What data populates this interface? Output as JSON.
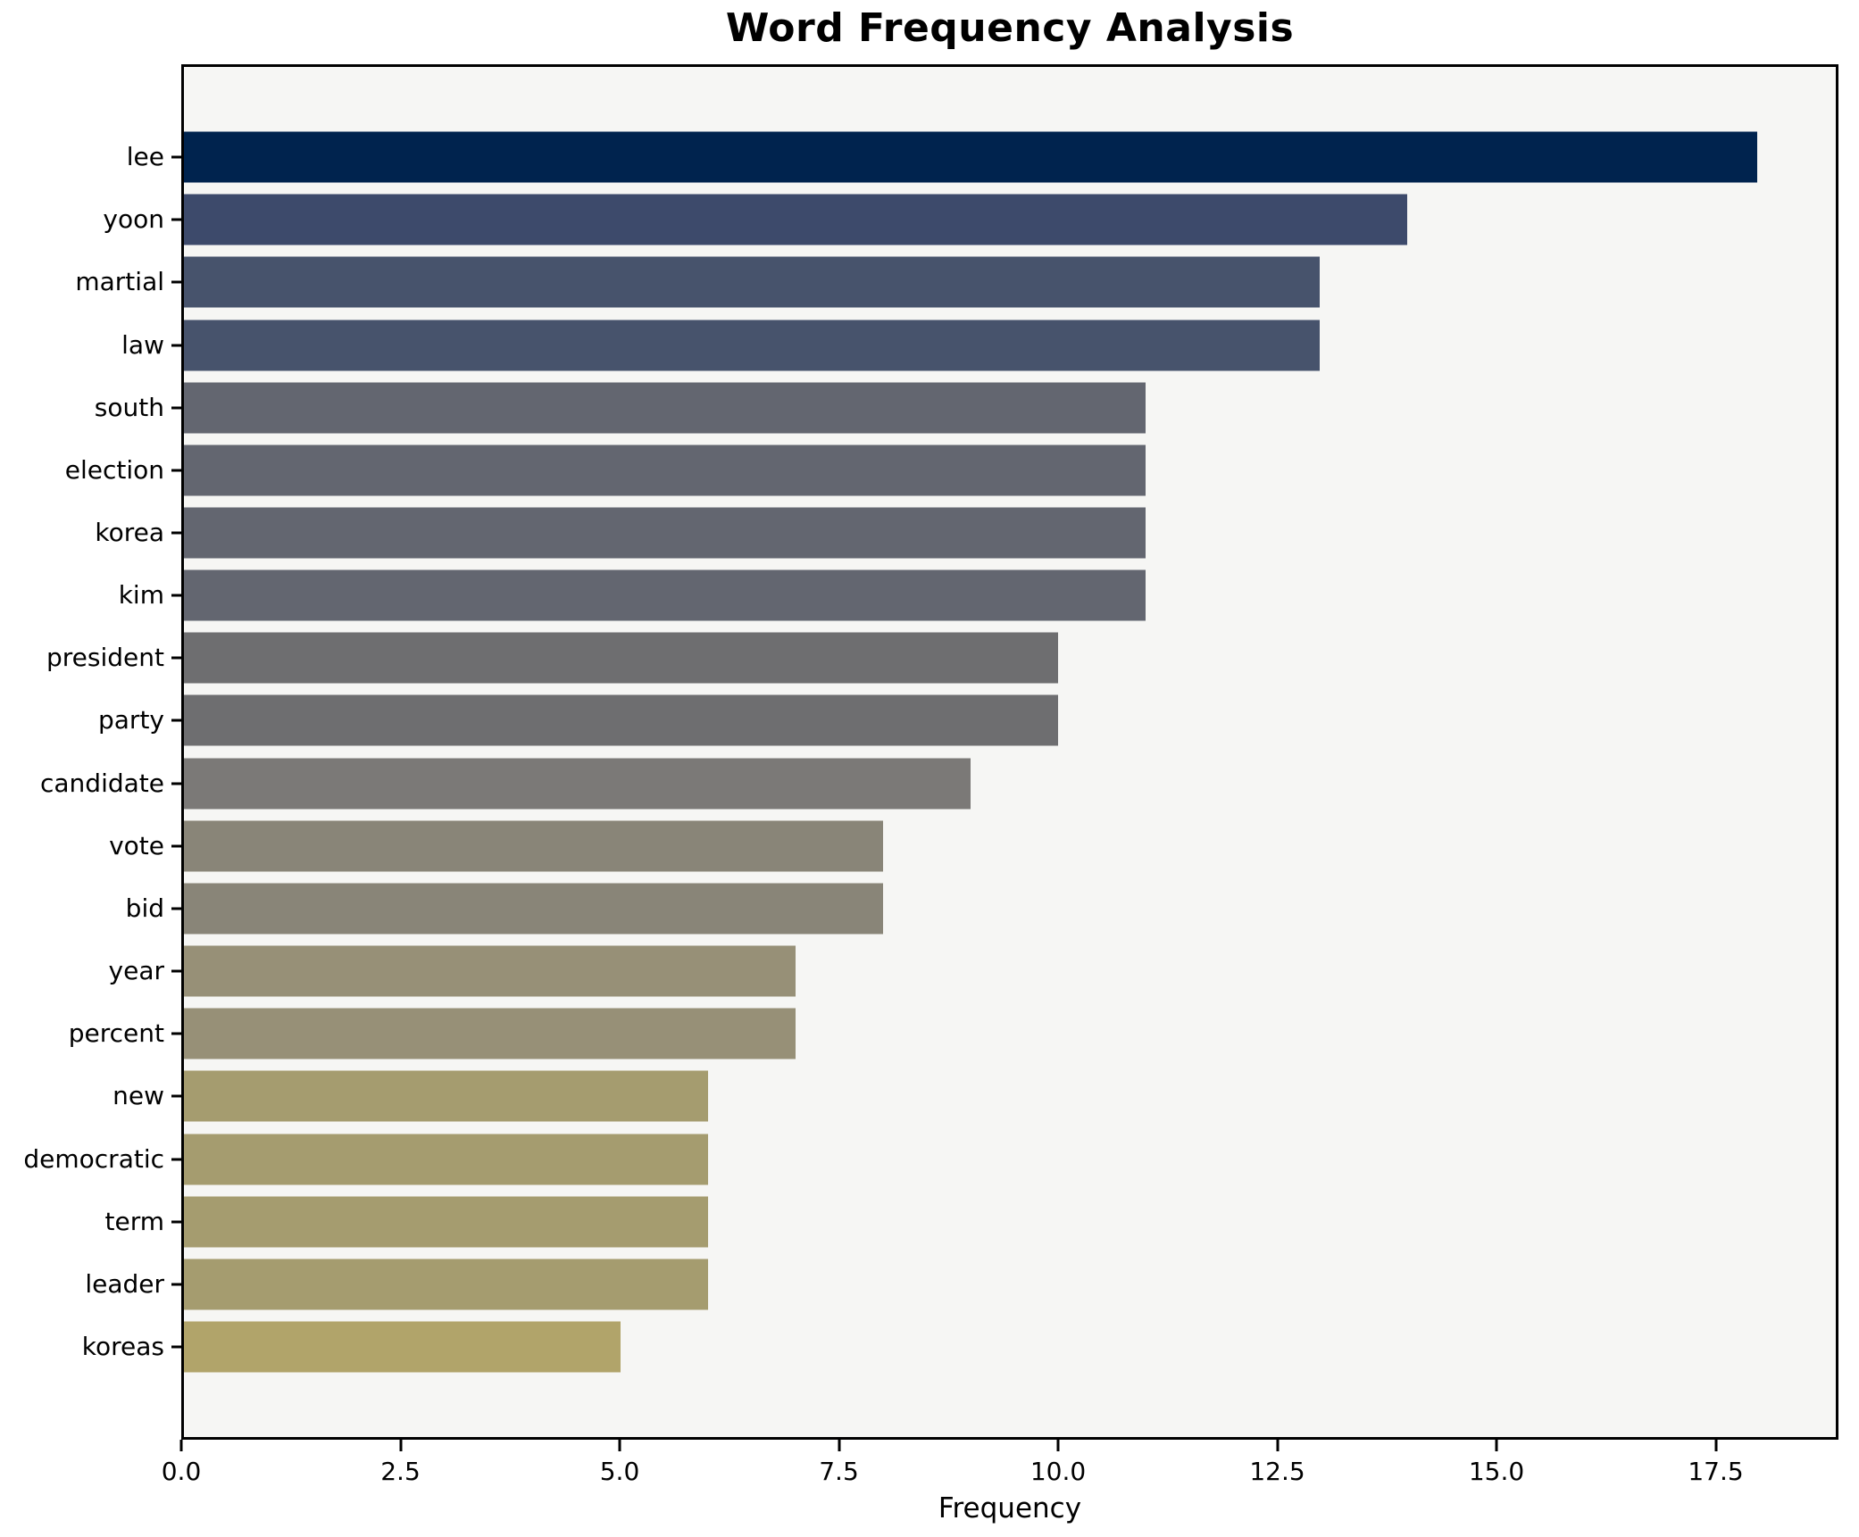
{
  "chart_data": {
    "type": "bar",
    "orientation": "horizontal",
    "title": "Word Frequency Analysis",
    "xlabel": "Frequency",
    "ylabel": "",
    "categories": [
      "lee",
      "yoon",
      "martial",
      "law",
      "south",
      "election",
      "korea",
      "kim",
      "president",
      "party",
      "candidate",
      "vote",
      "bid",
      "year",
      "percent",
      "new",
      "democratic",
      "term",
      "leader",
      "koreas"
    ],
    "values": [
      18,
      14,
      13,
      13,
      11,
      11,
      11,
      11,
      10,
      10,
      9,
      8,
      8,
      7,
      7,
      6,
      6,
      6,
      6,
      5
    ],
    "bar_colors": [
      "#00234e",
      "#3d4a6b",
      "#47536c",
      "#47536c",
      "#636670",
      "#636670",
      "#636670",
      "#636670",
      "#6e6e70",
      "#6e6e70",
      "#7b7977",
      "#898578",
      "#898578",
      "#979077",
      "#979077",
      "#a59c6f",
      "#a59c6f",
      "#a59c6f",
      "#a59c6f",
      "#b1a46a"
    ],
    "xlim": [
      0,
      18.9
    ],
    "x_ticks": [
      0,
      2.5,
      5,
      7.5,
      10,
      12.5,
      15,
      17.5
    ],
    "x_tick_labels": [
      "0.0",
      "2.5",
      "5.0",
      "7.5",
      "10.0",
      "12.5",
      "15.0",
      "17.5"
    ],
    "grid": false,
    "legend": "none",
    "colors": {
      "figure_bg": "#ffffff",
      "plot_bg": "#f6f6f4",
      "spine": "#000000",
      "text": "#000000"
    }
  }
}
